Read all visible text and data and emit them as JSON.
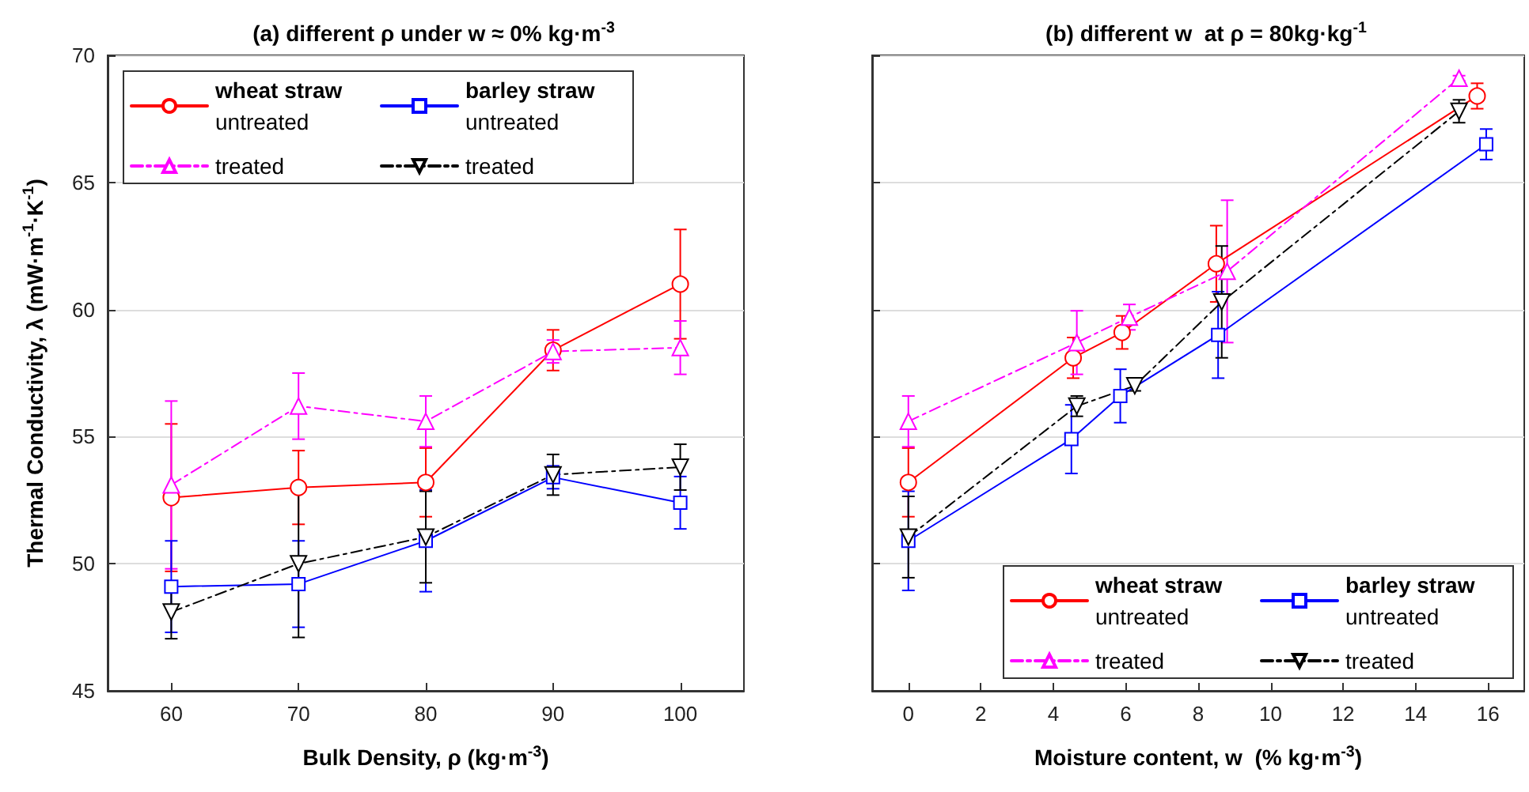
{
  "chart_data": [
    {
      "type": "line",
      "title": "(a) different ρ under w ≈ 0% kg·m$^{-3}$",
      "xlabel": "Bulk Density, ρ (kg·m$^{-3}$)",
      "ylabel": "Thermal Conductivity, λ (mW·m$^{-1}$·K$^{-1}$)",
      "x": [
        60,
        70,
        80,
        90,
        100
      ],
      "xlim": [
        55,
        105
      ],
      "xticks": [
        60,
        70,
        80,
        90,
        100
      ],
      "ylim": [
        45,
        70
      ],
      "yticks": [
        45,
        50,
        55,
        60,
        65,
        70
      ],
      "grid": "y",
      "legend": "top left",
      "series": [
        {
          "name": "wheat straw\nuntreated",
          "color": "#ff0000",
          "marker": "circle",
          "line_style": "solid",
          "values": [
            52.6,
            53.0,
            53.2,
            58.4,
            61.0
          ],
          "errors": [
            2.9,
            1.45,
            1.35,
            0.8,
            2.15
          ]
        },
        {
          "name": "treated",
          "color": "#ff00ff",
          "marker": "triangle",
          "line_style": "dashed",
          "values": [
            53.1,
            56.2,
            55.6,
            58.35,
            58.5
          ],
          "errors": [
            3.3,
            1.3,
            1.0,
            0.45,
            1.05
          ]
        },
        {
          "name": "barley straw\nuntreated",
          "color": "#0000ff",
          "marker": "square",
          "line_style": "solid",
          "values": [
            49.1,
            49.2,
            50.9,
            53.4,
            52.4
          ],
          "errors": [
            1.8,
            1.7,
            2.0,
            0.45,
            1.03
          ]
        },
        {
          "name": "treated",
          "color": "#000000",
          "marker": "triangle-down",
          "line_style": "dashed",
          "values": [
            48.1,
            50.0,
            51.05,
            53.5,
            53.8
          ],
          "errors": [
            1.05,
            2.9,
            1.8,
            0.8,
            0.9
          ]
        }
      ]
    },
    {
      "type": "line",
      "title": "(b) different w  at ρ = 80kg·kg$^{-1}$",
      "xlabel": "Moisture content, w  (% kg·m$^{-3}$)",
      "xlim": [
        -1,
        17
      ],
      "xticks": [
        0,
        2,
        4,
        6,
        8,
        10,
        12,
        14,
        16
      ],
      "ylim": [
        45,
        70
      ],
      "yticks": [
        45,
        50,
        55,
        60,
        65,
        70
      ],
      "grid": "y",
      "legend": "bottom right",
      "tick_labels": "x",
      "series": [
        {
          "name": "wheat straw\nuntreated",
          "color": "#ff0000",
          "marker": "circle",
          "line_style": "solid",
          "x": [
            0,
            4.55,
            5.9,
            8.5,
            15.7
          ],
          "values": [
            53.2,
            58.1,
            59.1,
            61.8,
            68.4
          ],
          "errors": [
            1.35,
            0.8,
            0.65,
            1.5,
            0.5
          ]
        },
        {
          "name": "treated",
          "color": "#ff00ff",
          "marker": "triangle",
          "line_style": "dashed",
          "x": [
            0,
            4.65,
            6.1,
            8.8,
            15.2
          ],
          "values": [
            55.6,
            58.7,
            59.7,
            61.5,
            69.1
          ],
          "errors": [
            1.0,
            1.25,
            0.5,
            2.8,
            0.1
          ]
        },
        {
          "name": "barley straw\nuntreated",
          "color": "#0000ff",
          "marker": "square",
          "line_style": "solid",
          "x": [
            0,
            4.5,
            5.85,
            8.55,
            15.95
          ],
          "values": [
            50.9,
            54.9,
            56.6,
            59.0,
            66.5
          ],
          "errors": [
            1.95,
            1.35,
            1.05,
            1.7,
            0.6
          ]
        },
        {
          "name": "treated",
          "color": "#000000",
          "marker": "triangle-down",
          "line_style": "dashed",
          "x": [
            0,
            4.65,
            6.25,
            8.65,
            15.2
          ],
          "values": [
            51.05,
            56.2,
            57.0,
            60.3,
            67.8
          ],
          "errors": [
            1.6,
            0.4,
            0.2,
            2.2,
            0.45
          ]
        }
      ]
    }
  ]
}
